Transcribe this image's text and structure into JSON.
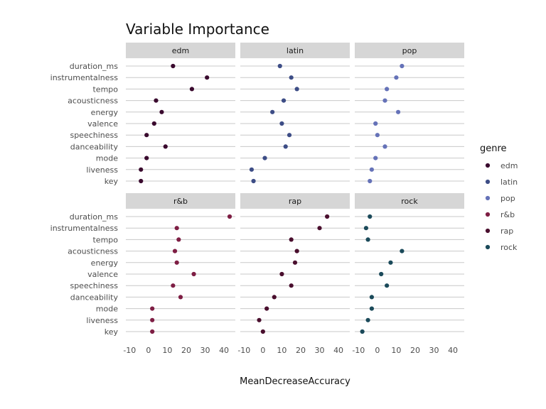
{
  "chart_data": {
    "type": "scatter",
    "title": "Variable Importance",
    "xlabel": "MeanDecreaseAccuracy",
    "ylabel": "",
    "xlim": [
      -12,
      46
    ],
    "x_ticks": [
      -10,
      0,
      10,
      20,
      30,
      40
    ],
    "x_tick_labels": [
      "-10",
      "0",
      "10",
      "20",
      "30",
      "40"
    ],
    "variables": [
      "duration_ms",
      "instrumentalness",
      "tempo",
      "acousticness",
      "energy",
      "valence",
      "speechiness",
      "danceability",
      "mode",
      "liveness",
      "key"
    ],
    "grid": "horizontal",
    "legend": {
      "title": "genre",
      "position": "right",
      "items": [
        {
          "name": "edm",
          "color": "#3a0a2e"
        },
        {
          "name": "latin",
          "color": "#3d4d86"
        },
        {
          "name": "pop",
          "color": "#6572b8"
        },
        {
          "name": "r&b",
          "color": "#7e1e44"
        },
        {
          "name": "rap",
          "color": "#4a0f2e"
        },
        {
          "name": "rock",
          "color": "#1b4a5a"
        }
      ]
    },
    "panels": [
      {
        "genre": "edm",
        "color": "#3a0a2e",
        "values": [
          13,
          31,
          23,
          4,
          7,
          3,
          -1,
          9,
          -1,
          -4,
          -4
        ]
      },
      {
        "genre": "latin",
        "color": "#3d4d86",
        "values": [
          9,
          15,
          18,
          11,
          5,
          10,
          14,
          12,
          1,
          -6,
          -5
        ]
      },
      {
        "genre": "pop",
        "color": "#6572b8",
        "values": [
          13,
          10,
          5,
          4,
          11,
          -1,
          0,
          4,
          -1,
          -3,
          -4
        ]
      },
      {
        "genre": "r&b",
        "color": "#7e1e44",
        "values": [
          43,
          15,
          16,
          14,
          15,
          24,
          13,
          17,
          2,
          2,
          2
        ]
      },
      {
        "genre": "rap",
        "color": "#4a0f2e",
        "values": [
          34,
          30,
          15,
          18,
          17,
          10,
          15,
          6,
          2,
          -2,
          0
        ]
      },
      {
        "genre": "rock",
        "color": "#1b4a5a",
        "values": [
          -4,
          -6,
          -5,
          13,
          7,
          2,
          5,
          -3,
          -3,
          -5,
          -8
        ]
      }
    ]
  }
}
